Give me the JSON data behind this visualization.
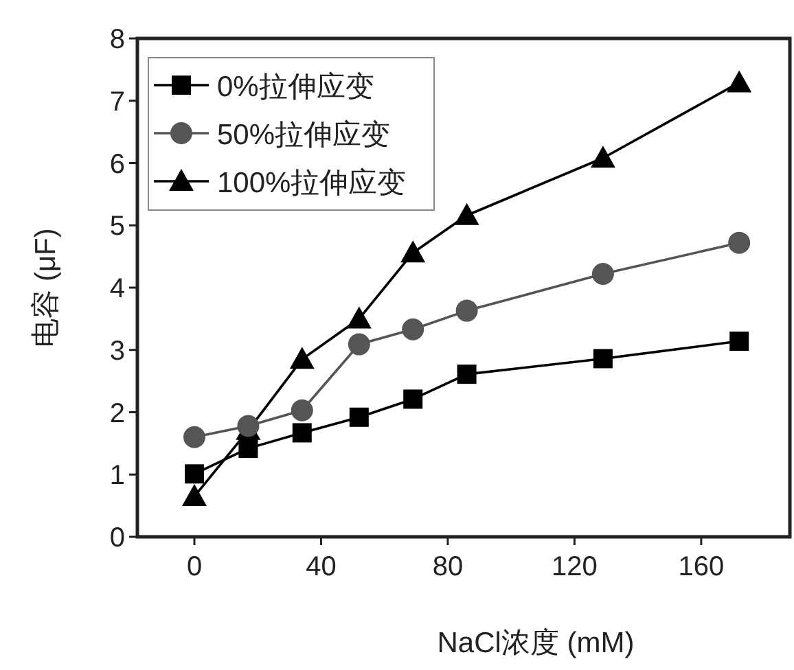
{
  "chart_data": {
    "type": "line",
    "xlabel": "NaCl浓度 (mM)",
    "ylabel": "电容 (μF)",
    "xlim": [
      -18,
      188
    ],
    "ylim": [
      0,
      8
    ],
    "xticks": [
      0,
      40,
      80,
      120,
      160
    ],
    "yticks": [
      0,
      1,
      2,
      3,
      4,
      5,
      6,
      7,
      8
    ],
    "legend": "top left",
    "grid": false,
    "line_style": "solid",
    "series": [
      {
        "name": "0%拉伸应变",
        "color": "#000000",
        "marker": "square",
        "x": [
          0,
          17,
          34,
          52,
          69,
          86,
          129,
          172
        ],
        "values": [
          1.01,
          1.42,
          1.67,
          1.92,
          2.21,
          2.61,
          2.86,
          3.14
        ]
      },
      {
        "name": "50%拉伸应变",
        "color": "#555555",
        "marker": "circle",
        "x": [
          0,
          17,
          34,
          52,
          69,
          86,
          129,
          172
        ],
        "values": [
          1.6,
          1.78,
          2.03,
          3.09,
          3.33,
          3.63,
          4.22,
          4.72
        ]
      },
      {
        "name": "100%拉伸应变",
        "color": "#000000",
        "marker": "triangle",
        "x": [
          0,
          17,
          34,
          52,
          69,
          86,
          129,
          172
        ],
        "values": [
          0.65,
          1.71,
          2.85,
          3.5,
          4.56,
          5.16,
          6.08,
          7.29
        ]
      }
    ]
  }
}
